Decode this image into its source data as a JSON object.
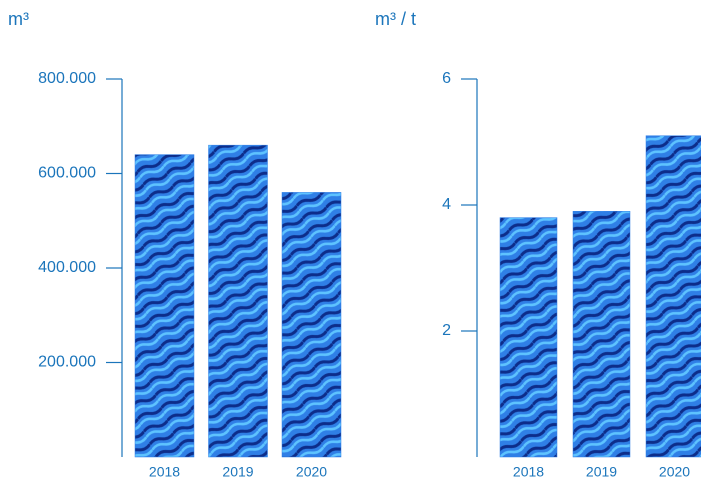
{
  "chart_data": [
    {
      "type": "bar",
      "title": "m³",
      "categories": [
        "2018",
        "2019",
        "2020"
      ],
      "values": [
        640000,
        660000,
        560000
      ],
      "color": "#2f7fe6",
      "ylim": [
        0,
        800000
      ],
      "yticks": [
        {
          "value": 200000,
          "label": "200.000"
        },
        {
          "value": 400000,
          "label": "400.000"
        },
        {
          "value": 600000,
          "label": "600.000"
        },
        {
          "value": 800000,
          "label": "800.000"
        }
      ]
    },
    {
      "type": "bar",
      "title": "m³ / t",
      "categories": [
        "2018",
        "2019",
        "2020"
      ],
      "values": [
        3.8,
        3.9,
        5.1
      ],
      "color": "#2f7fe6",
      "ylim": [
        0,
        6
      ],
      "yticks": [
        2,
        4,
        6
      ]
    }
  ]
}
